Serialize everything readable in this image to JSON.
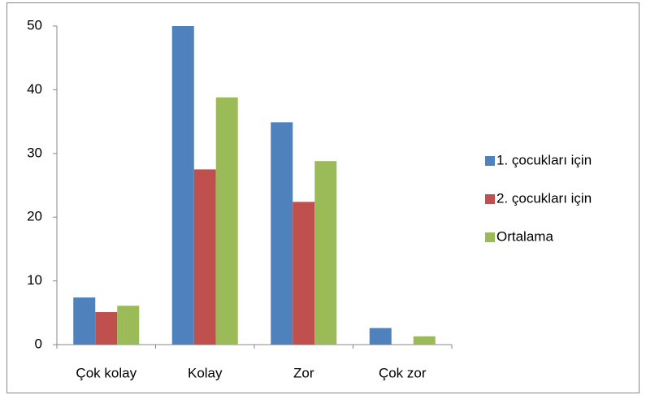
{
  "chart_data": {
    "type": "bar",
    "categories": [
      "Çok kolay",
      "Kolay",
      "Zor",
      "Çok zor"
    ],
    "series": [
      {
        "name": "1. çocukları için",
        "color": "#4f81bd",
        "values": [
          7.4,
          50,
          34.9,
          2.6
        ]
      },
      {
        "name": "2. çocukları için",
        "color": "#c0504d",
        "values": [
          5.1,
          27.5,
          22.4,
          0
        ]
      },
      {
        "name": "Ortalama",
        "color": "#9bbb59",
        "values": [
          6.1,
          38.8,
          28.8,
          1.3
        ]
      }
    ],
    "ylim": [
      0,
      50
    ],
    "yticks": [
      0,
      10,
      20,
      30,
      40,
      50
    ],
    "grid": false,
    "legend": "right"
  }
}
